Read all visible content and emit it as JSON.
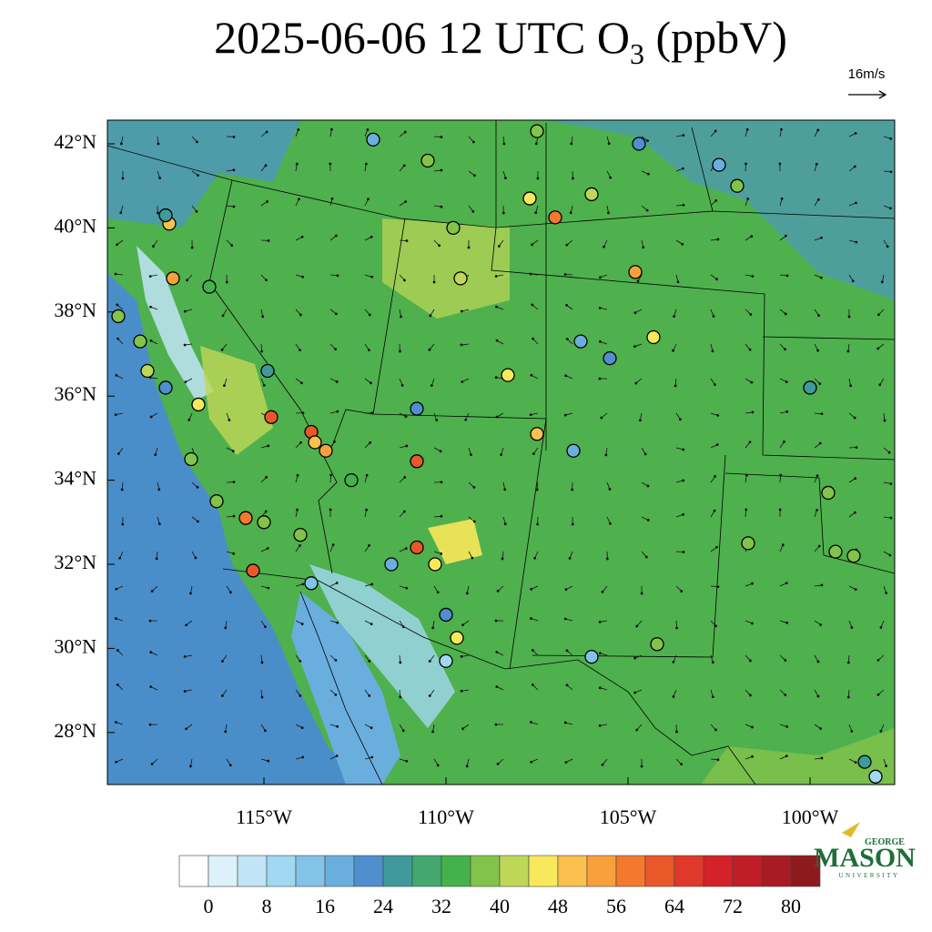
{
  "map": {
    "title": {
      "main": "2025-06-06 12 UTC O",
      "subscript": "3",
      "suffix": " (ppbV)"
    },
    "vector_reference": "16m/s",
    "lat_ticks": [
      {
        "value": 42,
        "label": "42°N"
      },
      {
        "value": 40,
        "label": "40°N"
      },
      {
        "value": 38,
        "label": "38°N"
      },
      {
        "value": 36,
        "label": "36°N"
      },
      {
        "value": 34,
        "label": "34°N"
      },
      {
        "value": 32,
        "label": "32°N"
      },
      {
        "value": 30,
        "label": "30°N"
      },
      {
        "value": 28,
        "label": "28°N"
      }
    ],
    "lon_ticks": [
      {
        "value": -115,
        "label": "115°W"
      },
      {
        "value": -110,
        "label": "110°W"
      },
      {
        "value": -105,
        "label": "105°W"
      },
      {
        "value": -100,
        "label": "100°W"
      }
    ],
    "stations": [
      {
        "lon": -110.8,
        "lat": 34.45,
        "o3": 62
      },
      {
        "lon": -114.8,
        "lat": 35.5,
        "o3": 60
      },
      {
        "lon": -110.8,
        "lat": 32.4,
        "o3": 62
      },
      {
        "lon": -115.3,
        "lat": 31.85,
        "o3": 60
      },
      {
        "lon": -113.7,
        "lat": 35.15,
        "o3": 62
      },
      {
        "lon": -107,
        "lat": 40.25,
        "o3": 56
      },
      {
        "lon": -117.5,
        "lat": 38.8,
        "o3": 52
      },
      {
        "lon": -104.8,
        "lat": 38.95,
        "o3": 52
      },
      {
        "lon": -113.3,
        "lat": 34.7,
        "o3": 52
      },
      {
        "lon": -115.5,
        "lat": 33.1,
        "o3": 56
      },
      {
        "lon": -107.5,
        "lat": 35.1,
        "o3": 50
      },
      {
        "lon": -117.6,
        "lat": 40.1,
        "o3": 48
      },
      {
        "lon": -107.7,
        "lat": 40.7,
        "o3": 46
      },
      {
        "lon": -108.3,
        "lat": 36.5,
        "o3": 46
      },
      {
        "lon": -109.7,
        "lat": 30.25,
        "o3": 46
      },
      {
        "lon": -110.3,
        "lat": 32,
        "o3": 46
      },
      {
        "lon": -116.8,
        "lat": 35.8,
        "o3": 46
      },
      {
        "lon": -113.6,
        "lat": 34.9,
        "o3": 48
      },
      {
        "lon": -104.3,
        "lat": 37.4,
        "o3": 44
      },
      {
        "lon": -119,
        "lat": 37.9,
        "o3": 36
      },
      {
        "lon": -118.4,
        "lat": 37.3,
        "o3": 38
      },
      {
        "lon": -117,
        "lat": 34.5,
        "o3": 36
      },
      {
        "lon": -116.3,
        "lat": 33.5,
        "o3": 36
      },
      {
        "lon": -115,
        "lat": 33,
        "o3": 38
      },
      {
        "lon": -114,
        "lat": 32.7,
        "o3": 36
      },
      {
        "lon": -107.5,
        "lat": 42.3,
        "o3": 38
      },
      {
        "lon": -110.5,
        "lat": 41.6,
        "o3": 38
      },
      {
        "lon": -109.8,
        "lat": 40,
        "o3": 38
      },
      {
        "lon": -109.6,
        "lat": 38.8,
        "o3": 40
      },
      {
        "lon": -106,
        "lat": 40.8,
        "o3": 40
      },
      {
        "lon": -102,
        "lat": 41,
        "o3": 38
      },
      {
        "lon": -101.7,
        "lat": 32.5,
        "o3": 36
      },
      {
        "lon": -99.3,
        "lat": 32.3,
        "o3": 38
      },
      {
        "lon": -98.8,
        "lat": 32.2,
        "o3": 36
      },
      {
        "lon": -99.5,
        "lat": 33.7,
        "o3": 36
      },
      {
        "lon": -104.2,
        "lat": 30.1,
        "o3": 36
      },
      {
        "lon": -112.6,
        "lat": 34,
        "o3": 32
      },
      {
        "lon": -118.2,
        "lat": 36.6,
        "o3": 40
      },
      {
        "lon": -116.5,
        "lat": 38.6,
        "o3": 34
      },
      {
        "lon": -112,
        "lat": 42.1,
        "o3": 16
      },
      {
        "lon": -117.7,
        "lat": 40.3,
        "o3": 24
      },
      {
        "lon": -114.9,
        "lat": 36.6,
        "o3": 24
      },
      {
        "lon": -110.8,
        "lat": 35.7,
        "o3": 20
      },
      {
        "lon": -106.5,
        "lat": 34.7,
        "o3": 18
      },
      {
        "lon": -106.3,
        "lat": 37.3,
        "o3": 16
      },
      {
        "lon": -105.5,
        "lat": 36.9,
        "o3": 20
      },
      {
        "lon": -110,
        "lat": 30.8,
        "o3": 20
      },
      {
        "lon": -113.7,
        "lat": 31.55,
        "o3": 12
      },
      {
        "lon": -111.5,
        "lat": 32,
        "o3": 16
      },
      {
        "lon": -106,
        "lat": 29.8,
        "o3": 12
      },
      {
        "lon": -104.7,
        "lat": 42,
        "o3": 20
      },
      {
        "lon": -102.5,
        "lat": 41.5,
        "o3": 16
      },
      {
        "lon": -100,
        "lat": 36.2,
        "o3": 24
      },
      {
        "lon": -98.5,
        "lat": 27.3,
        "o3": 24
      },
      {
        "lon": -98.2,
        "lat": 26.95,
        "o3": 8
      },
      {
        "lon": -117.7,
        "lat": 36.2,
        "o3": 20
      },
      {
        "lon": -110,
        "lat": 29.7,
        "o3": 10
      }
    ],
    "colorbar": {
      "levels": [
        0,
        4,
        8,
        12,
        16,
        20,
        24,
        28,
        32,
        36,
        40,
        44,
        48,
        52,
        56,
        60,
        64,
        68,
        72,
        76,
        80
      ],
      "colors": [
        "#ffffff",
        "#ddf1fa",
        "#bfe5f7",
        "#a1d8f2",
        "#84c3e8",
        "#6aaedd",
        "#4f8fcf",
        "#40999a",
        "#42a86e",
        "#44b24b",
        "#82c34b",
        "#bfd757",
        "#f8e85b",
        "#fbc04e",
        "#f8a03b",
        "#f4782d",
        "#ea5729",
        "#e0382a",
        "#d52128",
        "#c01e26",
        "#a81b22",
        "#8f1a1e"
      ],
      "ticks": [
        0,
        8,
        16,
        24,
        32,
        40,
        48,
        56,
        64,
        72,
        80
      ]
    },
    "logo": {
      "top": "GEORGE",
      "main": "MASON",
      "bottom": "UNIVERSITY"
    }
  }
}
